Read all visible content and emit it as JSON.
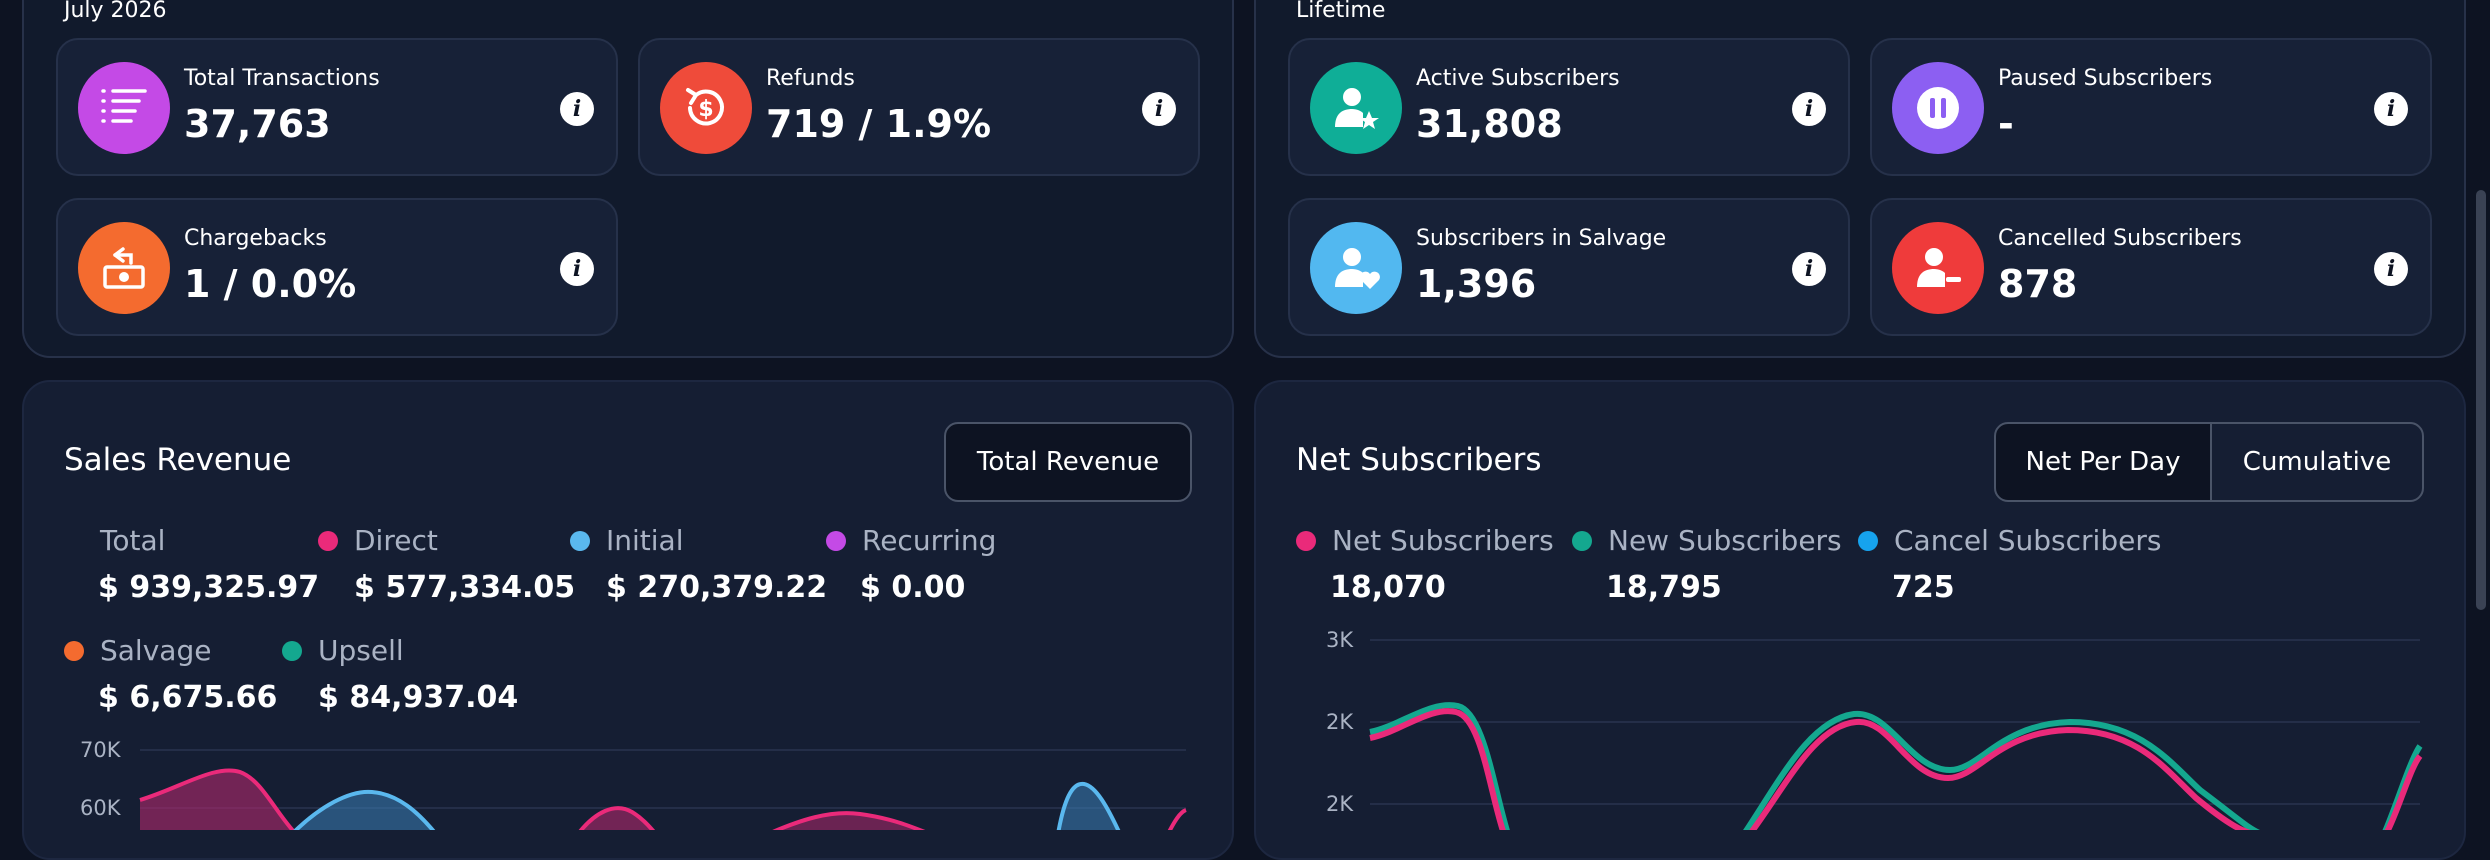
{
  "left_section": {
    "period": "July 2026",
    "cards": [
      {
        "label": "Total Transactions",
        "value": "37,763",
        "icon": "list-icon",
        "color": "#c44ae6"
      },
      {
        "label": "Refunds",
        "value": "719 / 1.9%",
        "icon": "refund-dollar-icon",
        "color": "#ef4b3a"
      },
      {
        "label": "Chargebacks",
        "value": "1 / 0.0%",
        "icon": "cash-return-icon",
        "color": "#f46b2f"
      }
    ]
  },
  "right_section": {
    "period": "Lifetime",
    "cards": [
      {
        "label": "Active Subscribers",
        "value": "31,808",
        "icon": "user-star-icon",
        "color": "#0fae97"
      },
      {
        "label": "Paused Subscribers",
        "value": "-",
        "icon": "pause-icon",
        "color": "#8c5ff2"
      },
      {
        "label": "Subscribers in Salvage",
        "value": "1,396",
        "icon": "user-heart-icon",
        "color": "#52b8f0"
      },
      {
        "label": "Cancelled Subscribers",
        "value": "878",
        "icon": "user-minus-icon",
        "color": "#ef3b3b"
      }
    ]
  },
  "sales": {
    "title": "Sales Revenue",
    "button": "Total Revenue",
    "legend": [
      {
        "label": "Total",
        "value": "$ 939,325.97",
        "color": ""
      },
      {
        "label": "Direct",
        "value": "$ 577,334.05",
        "color": "#ea2a7a"
      },
      {
        "label": "Initial",
        "value": "$ 270,379.22",
        "color": "#5ab8ee"
      },
      {
        "label": "Recurring",
        "value": "$ 0.00",
        "color": "#c44ae6"
      },
      {
        "label": "Salvage",
        "value": "$ 6,675.66",
        "color": "#f46b2f"
      },
      {
        "label": "Upsell",
        "value": "$ 84,937.04",
        "color": "#14a88f"
      }
    ],
    "y_ticks": [
      "70K",
      "60K"
    ]
  },
  "net": {
    "title": "Net Subscribers",
    "buttons": [
      "Net Per Day",
      "Cumulative"
    ],
    "legend": [
      {
        "label": "Net Subscribers",
        "value": "18,070",
        "color": "#ea2a7a"
      },
      {
        "label": "New Subscribers",
        "value": "18,795",
        "color": "#14a88f"
      },
      {
        "label": "Cancel Subscribers",
        "value": "725",
        "color": "#16a3ee"
      }
    ],
    "y_ticks": [
      "3K",
      "2K",
      "2K"
    ]
  }
}
